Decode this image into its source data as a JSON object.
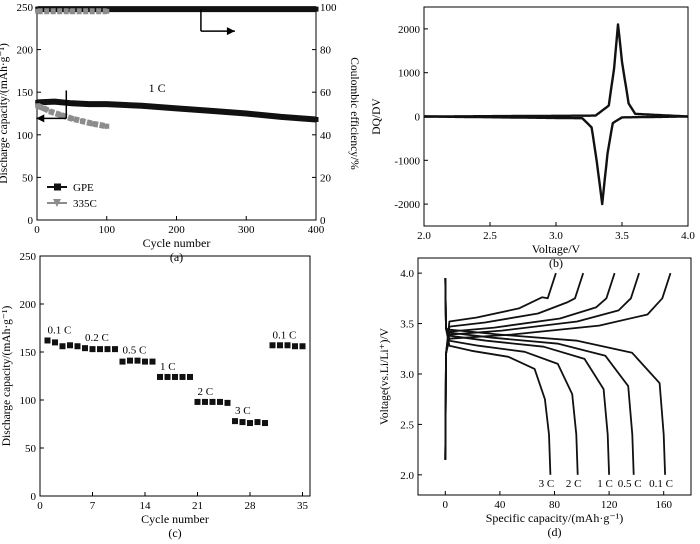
{
  "chart_data": [
    {
      "id": "a",
      "type": "line",
      "caption": "(a)",
      "xlabel": "Cycle number",
      "ylabel": "Discharge capacity/(mAh·g⁻¹)",
      "y2label": "Coulombic efficiency/%",
      "xlim": [
        0,
        400
      ],
      "ylim": [
        0,
        250
      ],
      "y2lim": [
        0,
        100
      ],
      "xticks": [
        0,
        100,
        200,
        300,
        400
      ],
      "yticks": [
        0,
        50,
        100,
        150,
        200,
        250
      ],
      "y2ticks": [
        0,
        20,
        40,
        60,
        80,
        100
      ],
      "annotation": "1 C",
      "legend": [
        {
          "name": "GPE",
          "marker": "square",
          "color": "#111111"
        },
        {
          "name": "335C",
          "marker": "triangle-down",
          "color": "#8c8c8c"
        }
      ],
      "series": [
        {
          "name": "GPE capacity",
          "axis": "left",
          "color": "#111111",
          "x": [
            1,
            25,
            50,
            75,
            100,
            150,
            200,
            250,
            300,
            350,
            400
          ],
          "y": [
            138,
            139,
            137,
            136,
            136,
            134,
            131,
            128,
            125,
            121,
            118
          ]
        },
        {
          "name": "335C capacity",
          "axis": "left",
          "color": "#8c8c8c",
          "x": [
            1,
            10,
            20,
            35,
            50,
            65,
            80,
            100
          ],
          "y": [
            134,
            131,
            127,
            123,
            119,
            116,
            113,
            110
          ]
        },
        {
          "name": "GPE efficiency",
          "axis": "right",
          "color": "#111111",
          "x": [
            1,
            100,
            200,
            300,
            400
          ],
          "y": [
            99,
            99,
            99,
            99,
            99
          ]
        },
        {
          "name": "335C efficiency",
          "axis": "right",
          "color": "#8c8c8c",
          "x": [
            1,
            50,
            100
          ],
          "y": [
            98,
            98,
            98
          ]
        }
      ]
    },
    {
      "id": "b",
      "type": "line",
      "caption": "(b)",
      "xlabel": "Voltage/V",
      "ylabel": "DQ/DV",
      "xlim": [
        2.0,
        4.0
      ],
      "ylim": [
        -2500,
        2500
      ],
      "xticks": [
        "2.0",
        "2.5",
        "3.0",
        "3.5",
        "4.0"
      ],
      "yticks": [
        -2000,
        -1000,
        0,
        1000,
        2000
      ],
      "series": [
        {
          "name": "charge",
          "x": [
            2.0,
            3.3,
            3.4,
            3.44,
            3.47,
            3.5,
            3.55,
            3.6,
            4.0
          ],
          "y": [
            0,
            20,
            250,
            1100,
            2100,
            1250,
            300,
            60,
            0
          ]
        },
        {
          "name": "discharge",
          "x": [
            2.0,
            3.2,
            3.27,
            3.31,
            3.35,
            3.39,
            3.43,
            3.5,
            4.0
          ],
          "y": [
            0,
            -40,
            -250,
            -1050,
            -2000,
            -850,
            -150,
            -20,
            0
          ]
        }
      ]
    },
    {
      "id": "c",
      "type": "scatter",
      "caption": "(c)",
      "xlabel": "Cycle number",
      "ylabel": "Discharge capacity/(mAh·g⁻¹)",
      "xlim": [
        0,
        36
      ],
      "ylim": [
        0,
        250
      ],
      "xticks": [
        0,
        7,
        14,
        21,
        28,
        35
      ],
      "yticks": [
        0,
        50,
        100,
        150,
        200,
        250
      ],
      "groups": [
        {
          "label": "0.1 C",
          "x": [
            1,
            2,
            3,
            4,
            5
          ],
          "y": [
            162,
            160,
            156,
            157,
            156
          ]
        },
        {
          "label": "0.2 C",
          "x": [
            6,
            7,
            8,
            9,
            10
          ],
          "y": [
            154,
            153,
            153,
            153,
            153
          ]
        },
        {
          "label": "0.5 C",
          "x": [
            11,
            12,
            13,
            14,
            15
          ],
          "y": [
            140,
            141,
            141,
            140,
            140
          ]
        },
        {
          "label": "1 C",
          "x": [
            16,
            17,
            18,
            19,
            20
          ],
          "y": [
            124,
            124,
            124,
            124,
            124
          ]
        },
        {
          "label": "2 C",
          "x": [
            21,
            22,
            23,
            24,
            25
          ],
          "y": [
            98,
            98,
            98,
            98,
            97
          ]
        },
        {
          "label": "3 C",
          "x": [
            26,
            27,
            28,
            29,
            30
          ],
          "y": [
            78,
            77,
            76,
            77,
            76
          ]
        },
        {
          "label": "0.1 C",
          "x": [
            31,
            32,
            33,
            34,
            35
          ],
          "y": [
            157,
            157,
            157,
            156,
            156
          ]
        }
      ]
    },
    {
      "id": "d",
      "type": "line",
      "caption": "(d)",
      "xlabel": "Specific capacity/(mAh·g⁻¹)",
      "ylabel": "Voltage(vs.Li/Li⁺)/V",
      "xlim": [
        -20,
        180
      ],
      "ylim": [
        1.8,
        4.15
      ],
      "xticks": [
        0,
        40,
        80,
        120,
        160
      ],
      "yticks": [
        "2.0",
        "2.5",
        "3.0",
        "3.5",
        "4.0"
      ],
      "curves": [
        {
          "label": "3 C",
          "capacity": 77,
          "charge_plateau": 3.62,
          "discharge_plateau": 3.2
        },
        {
          "label": "2 C",
          "capacity": 97,
          "charge_plateau": 3.57,
          "discharge_plateau": 3.25
        },
        {
          "label": "1 C",
          "capacity": 120,
          "charge_plateau": 3.52,
          "discharge_plateau": 3.3
        },
        {
          "label": "0.5 C",
          "capacity": 138,
          "charge_plateau": 3.49,
          "discharge_plateau": 3.33
        },
        {
          "label": "0.1 C",
          "capacity": 161,
          "charge_plateau": 3.45,
          "discharge_plateau": 3.36
        }
      ]
    }
  ]
}
